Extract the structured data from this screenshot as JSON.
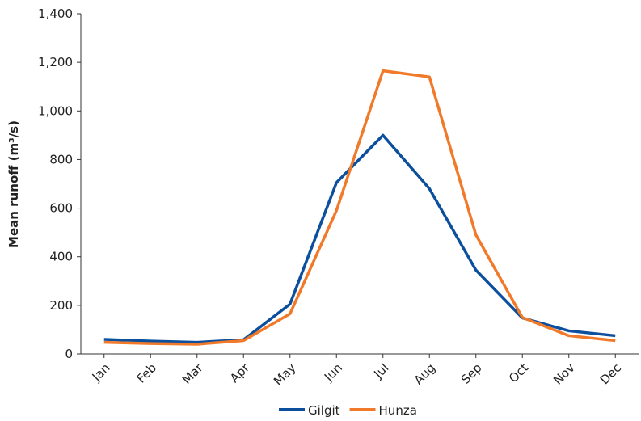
{
  "chart_data": {
    "type": "line",
    "y_label": "Mean runoff (m³/s)",
    "categories": [
      "Jan",
      "Feb",
      "Mar",
      "Apr",
      "May",
      "Jun",
      "Jul",
      "Aug",
      "Sep",
      "Oct",
      "Nov",
      "Dec"
    ],
    "series": [
      {
        "name": "Gilgit",
        "color": "#0b4f9d",
        "values": [
          60,
          53,
          48,
          58,
          205,
          705,
          900,
          680,
          345,
          148,
          95,
          75
        ]
      },
      {
        "name": "Hunza",
        "color": "#f07a2a",
        "values": [
          48,
          43,
          40,
          55,
          165,
          590,
          1165,
          1140,
          490,
          150,
          75,
          55
        ]
      }
    ],
    "ylim": [
      0,
      1400
    ],
    "yticks": [
      0,
      200,
      400,
      600,
      800,
      {
        "value": 1000,
        "label": "1,000"
      },
      {
        "value": 1200,
        "label": "1,200"
      },
      {
        "value": 1400,
        "label": "1,400"
      }
    ],
    "legend": "bottom"
  }
}
